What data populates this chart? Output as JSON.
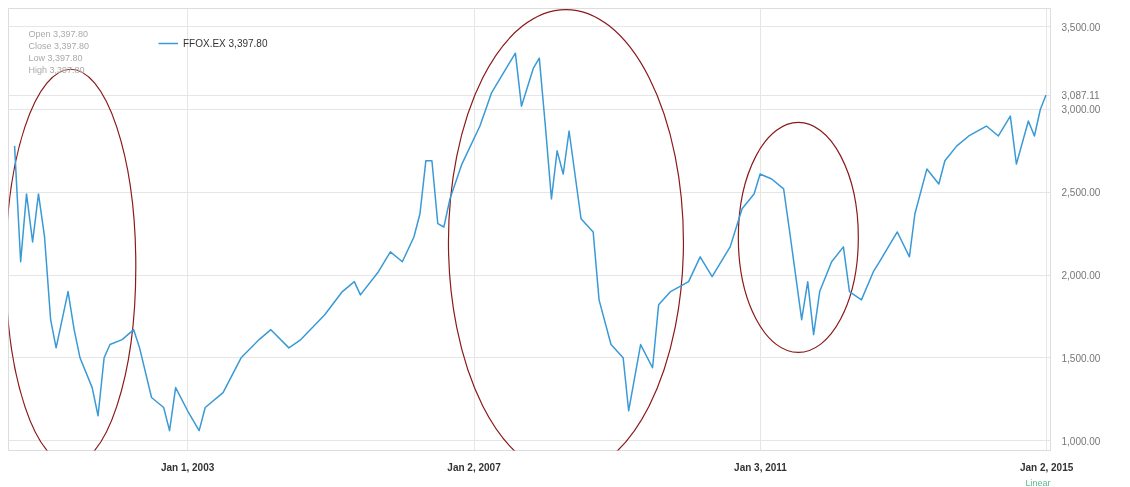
{
  "chart_data": {
    "type": "line",
    "x": [
      "2000-08",
      "2000-09",
      "2000-10",
      "2000-11",
      "2000-12",
      "2001-01",
      "2001-02",
      "2001-03",
      "2001-05",
      "2001-06",
      "2001-07",
      "2001-09",
      "2001-10",
      "2001-11",
      "2001-12",
      "2002-02",
      "2002-04",
      "2002-05",
      "2002-07",
      "2002-09",
      "2002-10",
      "2002-11",
      "2003-01",
      "2003-03",
      "2003-04",
      "2003-07",
      "2003-10",
      "2004-01",
      "2004-03",
      "2004-06",
      "2004-08",
      "2004-12",
      "2005-03",
      "2005-05",
      "2005-06",
      "2005-09",
      "2005-11",
      "2006-01",
      "2006-03",
      "2006-04",
      "2006-05",
      "2006-06",
      "2006-07",
      "2006-08",
      "2006-09",
      "2006-11",
      "2007-02",
      "2007-04",
      "2007-07",
      "2007-08",
      "2007-09",
      "2007-11",
      "2007-12",
      "2008-01",
      "2008-02",
      "2008-03",
      "2008-04",
      "2008-05",
      "2008-07",
      "2008-09",
      "2008-10",
      "2008-12",
      "2009-02",
      "2009-03",
      "2009-05",
      "2009-07",
      "2009-08",
      "2009-10",
      "2010-01",
      "2010-03",
      "2010-05",
      "2010-07",
      "2010-08",
      "2010-10",
      "2010-12",
      "2011-01",
      "2011-03",
      "2011-05",
      "2011-06",
      "2011-08",
      "2011-09",
      "2011-10",
      "2011-11",
      "2012-01",
      "2012-03",
      "2012-04",
      "2012-06",
      "2012-08",
      "2012-09",
      "2012-12",
      "2013-02",
      "2013-03",
      "2013-05",
      "2013-07",
      "2013-08",
      "2013-10",
      "2013-12",
      "2014-03",
      "2014-05",
      "2014-07",
      "2014-08",
      "2014-10",
      "2014-11",
      "2014-12",
      "2014-12-30"
    ],
    "series": [
      {
        "name": "FFOX.EX 3,397.80",
        "color": "#3a9ad6",
        "values": [
          2780,
          2080,
          2490,
          2200,
          2490,
          2230,
          1730,
          1560,
          1900,
          1670,
          1500,
          1320,
          1150,
          1500,
          1580,
          1610,
          1670,
          1560,
          1260,
          1200,
          1060,
          1320,
          1180,
          1060,
          1200,
          1290,
          1500,
          1610,
          1670,
          1560,
          1610,
          1760,
          1900,
          1960,
          1880,
          2020,
          2140,
          2080,
          2230,
          2370,
          2690,
          2690,
          2310,
          2290,
          2460,
          2670,
          2900,
          3100,
          3280,
          3340,
          3020,
          3250,
          3310,
          2900,
          2460,
          2750,
          2610,
          2870,
          2340,
          2260,
          1850,
          1580,
          1500,
          1180,
          1580,
          1440,
          1820,
          1900,
          1960,
          2110,
          1990,
          2110,
          2170,
          2400,
          2490,
          2610,
          2580,
          2520,
          2260,
          1730,
          1960,
          1640,
          1900,
          2080,
          2170,
          1900,
          1850,
          2020,
          2080,
          2260,
          2110,
          2370,
          2640,
          2550,
          2690,
          2780,
          2840,
          2900,
          2840,
          2960,
          2670,
          2930,
          2840,
          3000,
          3087.11
        ]
      }
    ],
    "xlim": [
      "2000-07-01",
      "2015-01-22"
    ],
    "ylim": [
      940,
      3610
    ],
    "xticks": [
      {
        "value": "2003-01-01",
        "label": "Jan 1, 2003"
      },
      {
        "value": "2007-01-02",
        "label": "Jan 2, 2007"
      },
      {
        "value": "2011-01-03",
        "label": "Jan 3, 2011"
      },
      {
        "value": "2015-01-02",
        "label": "Jan 2, 2015"
      }
    ],
    "yticks": [
      {
        "value": 1000,
        "label": "1,000.00"
      },
      {
        "value": 1500,
        "label": "1,500.00"
      },
      {
        "value": 2000,
        "label": "2,000.00"
      },
      {
        "value": 2500,
        "label": "2,500.00"
      },
      {
        "value": 3000,
        "label": "3,000.00"
      },
      {
        "value": 3087.11,
        "label": "3,087.11"
      },
      {
        "value": 3500,
        "label": "3,500.00"
      }
    ],
    "grid": true,
    "legend": "top left",
    "annotations": [
      "Open 3,397.80",
      "Close 3,397.80",
      "Low 3,397.80",
      "High 3,397.80",
      "Linear"
    ]
  }
}
